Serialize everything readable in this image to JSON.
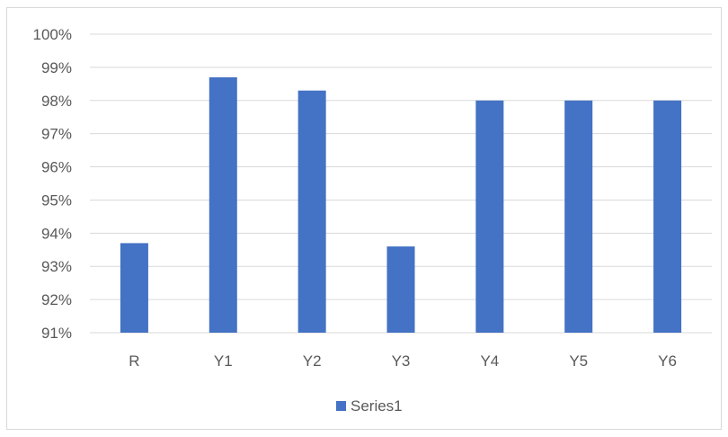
{
  "chart_data": {
    "type": "bar",
    "categories": [
      "R",
      "Y1",
      "Y2",
      "Y3",
      "Y4",
      "Y5",
      "Y6"
    ],
    "series": [
      {
        "name": "Series1",
        "values": [
          93.7,
          98.7,
          98.3,
          93.6,
          98.0,
          98.0,
          98.0
        ],
        "color": "#4472c4"
      }
    ],
    "ylim": [
      91,
      100
    ],
    "yticks": [
      "91%",
      "92%",
      "93%",
      "94%",
      "95%",
      "96%",
      "97%",
      "98%",
      "99%",
      "100%"
    ],
    "grid": true,
    "gridColor": "#d9d9d9",
    "legend": "bottom"
  }
}
